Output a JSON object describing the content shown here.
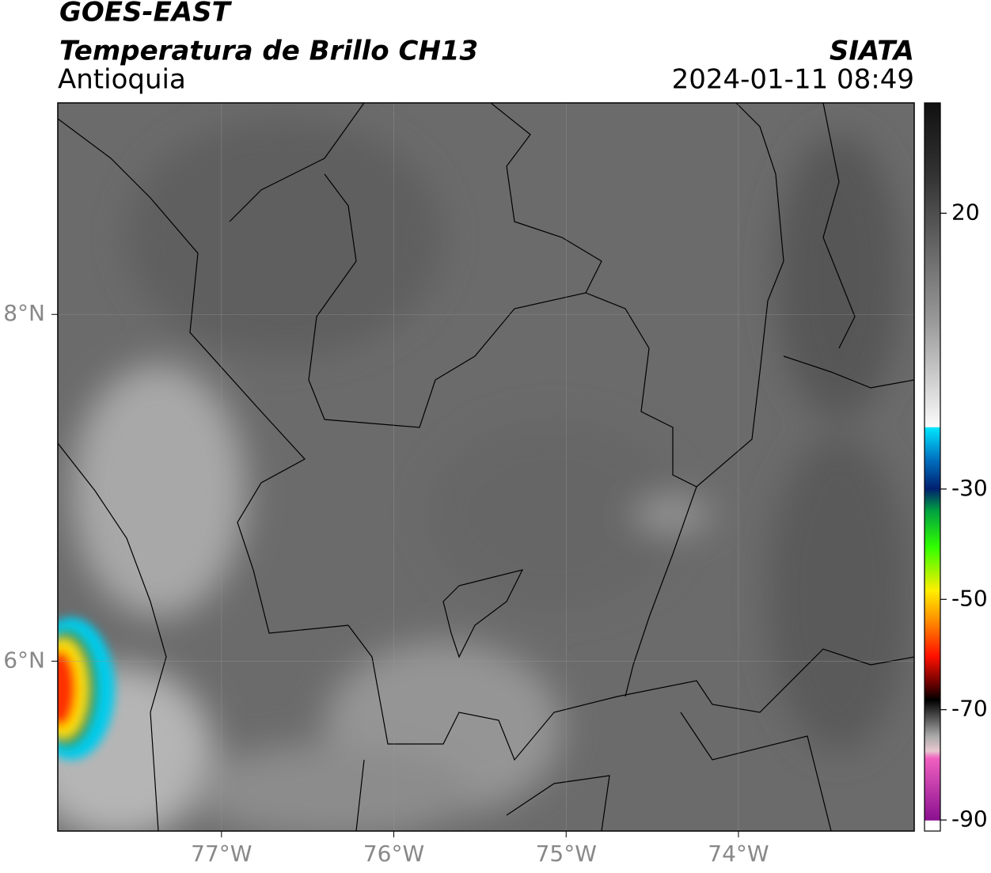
{
  "header": {
    "title": "GOES-EAST",
    "subtitle": "Temperatura de Brillo CH13",
    "region": "Antioquia",
    "source": "SIATA",
    "datetime": "2024-01-11 08:49"
  },
  "map": {
    "xlim": [
      -77.95,
      -72.98
    ],
    "ylim": [
      5.02,
      9.22
    ],
    "xticks": [
      {
        "value": -77,
        "label": "77°W"
      },
      {
        "value": -76,
        "label": "76°W"
      },
      {
        "value": -75,
        "label": "75°W"
      },
      {
        "value": -74,
        "label": "74°W"
      }
    ],
    "yticks": [
      {
        "value": 8,
        "label": "8°N"
      },
      {
        "value": 6,
        "label": "6°N"
      }
    ]
  },
  "colorbar": {
    "lim": [
      -92,
      40
    ],
    "ticks": [
      20,
      -30,
      -50,
      -70,
      -90
    ]
  }
}
